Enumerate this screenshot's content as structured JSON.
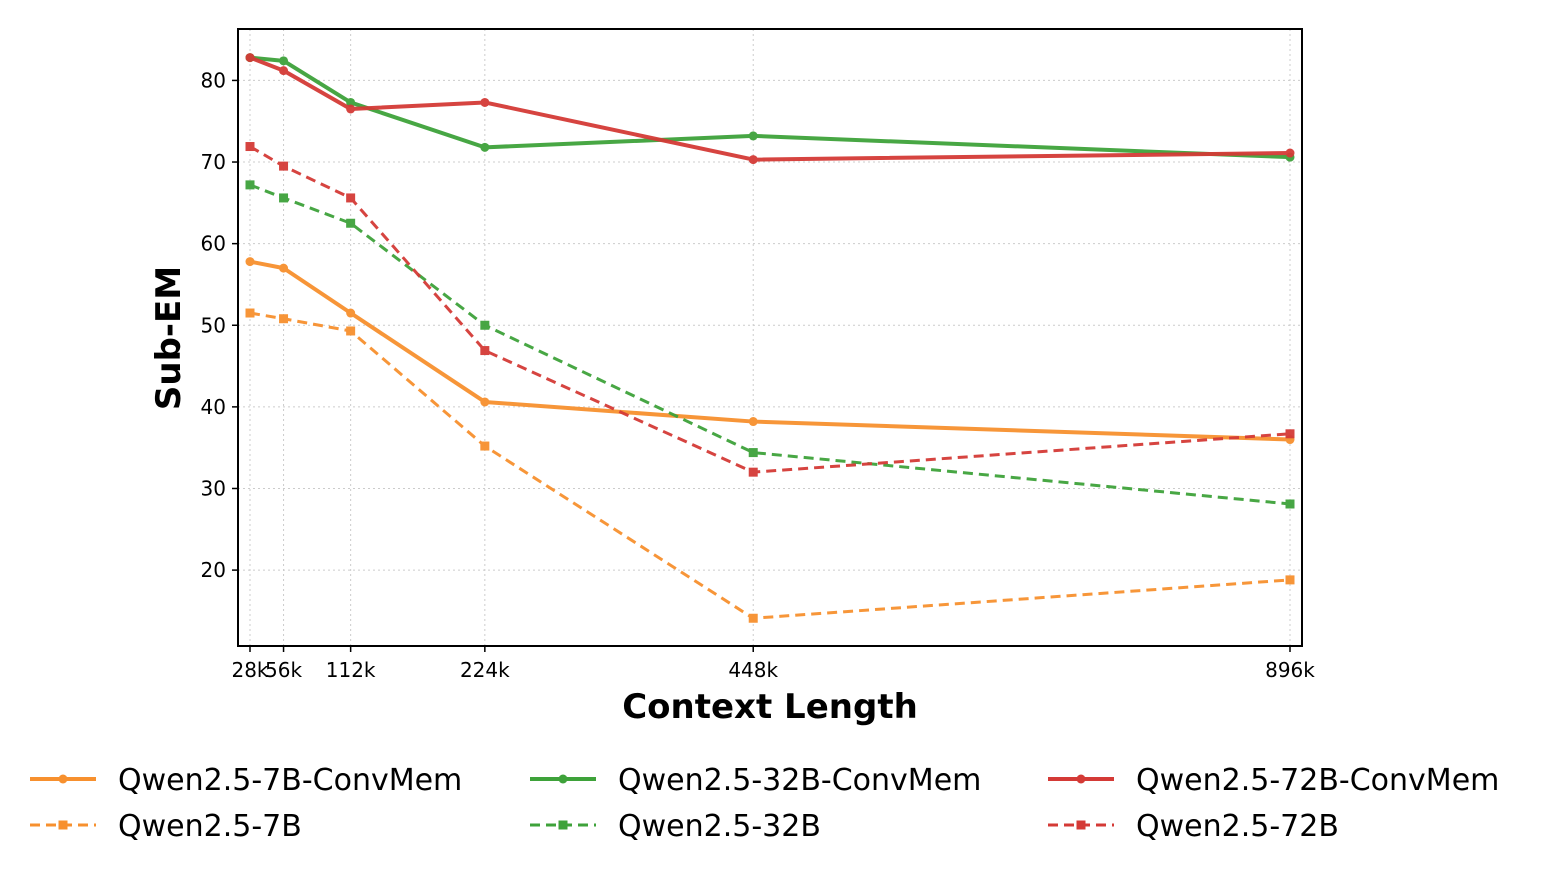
{
  "chart_data": {
    "type": "line",
    "xlabel": "Context Length",
    "ylabel": "Sub-EM",
    "x": [
      28,
      56,
      112,
      224,
      448,
      896
    ],
    "xtick_labels": [
      "28k",
      "56k",
      "112k",
      "224k",
      "448k",
      "896k"
    ],
    "yticks": [
      20,
      30,
      40,
      50,
      60,
      70,
      80
    ],
    "ylim": [
      10.7,
      86.3
    ],
    "grid": true,
    "legend_position": "bottom",
    "series": [
      {
        "name": "Qwen2.5-7B-ConvMem",
        "color": "#f7902e",
        "style": "solid",
        "marker": "circle",
        "values": [
          57.8,
          57.0,
          51.5,
          40.6,
          38.2,
          36.0
        ]
      },
      {
        "name": "Qwen2.5-7B",
        "color": "#f7902e",
        "style": "dashed",
        "marker": "square",
        "values": [
          51.5,
          50.8,
          49.3,
          35.2,
          14.1,
          18.8
        ]
      },
      {
        "name": "Qwen2.5-32B-ConvMem",
        "color": "#3ea23a",
        "style": "solid",
        "marker": "circle",
        "values": [
          82.8,
          82.4,
          77.3,
          71.8,
          73.2,
          70.6
        ]
      },
      {
        "name": "Qwen2.5-32B",
        "color": "#3ea23a",
        "style": "dashed",
        "marker": "square",
        "values": [
          67.2,
          65.6,
          62.5,
          50.0,
          34.4,
          28.1
        ]
      },
      {
        "name": "Qwen2.5-72B-ConvMem",
        "color": "#d43a36",
        "style": "solid",
        "marker": "circle",
        "values": [
          82.8,
          81.2,
          76.5,
          77.3,
          70.3,
          71.1
        ]
      },
      {
        "name": "Qwen2.5-72B",
        "color": "#d43a36",
        "style": "dashed",
        "marker": "square",
        "values": [
          71.9,
          69.5,
          65.6,
          46.9,
          32.0,
          36.7
        ]
      }
    ]
  }
}
